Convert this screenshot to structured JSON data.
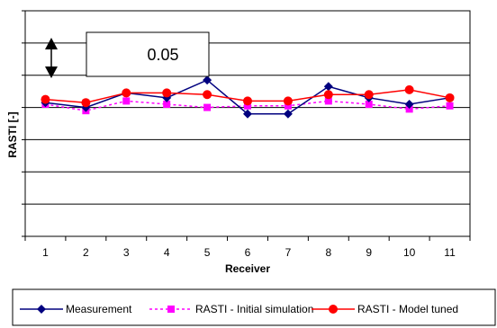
{
  "chart_data": {
    "type": "line",
    "title": "",
    "xlabel": "Receiver",
    "ylabel": "RASTI [-]",
    "categories": [
      "1",
      "2",
      "3",
      "4",
      "5",
      "6",
      "7",
      "8",
      "9",
      "10",
      "11"
    ],
    "ylim": [
      0,
      0.35
    ],
    "y_grid_step": 0.05,
    "grid": true,
    "legend_position": "bottom",
    "annotation": {
      "label": "0.05",
      "meaning": "0.05"
    },
    "series": [
      {
        "name": "Measurement",
        "color": "#00007f",
        "marker": "diamond",
        "line_style": "solid",
        "values": [
          0.2075,
          0.2,
          0.2225,
          0.215,
          0.2425,
          0.19,
          0.19,
          0.2325,
          0.215,
          0.205,
          0.215
        ]
      },
      {
        "name": "RASTI - Initial simulation",
        "color": "#ff00ff",
        "marker": "square",
        "line_style": "dashed",
        "values": [
          0.205,
          0.195,
          0.21,
          0.205,
          0.2,
          0.2025,
          0.2025,
          0.21,
          0.205,
          0.1975,
          0.2025
        ]
      },
      {
        "name": "RASTI - Model tuned",
        "color": "#ff0000",
        "marker": "circle",
        "line_style": "solid",
        "values": [
          0.2125,
          0.2075,
          0.2225,
          0.2225,
          0.22,
          0.21,
          0.21,
          0.22,
          0.22,
          0.2275,
          0.215
        ]
      }
    ]
  }
}
